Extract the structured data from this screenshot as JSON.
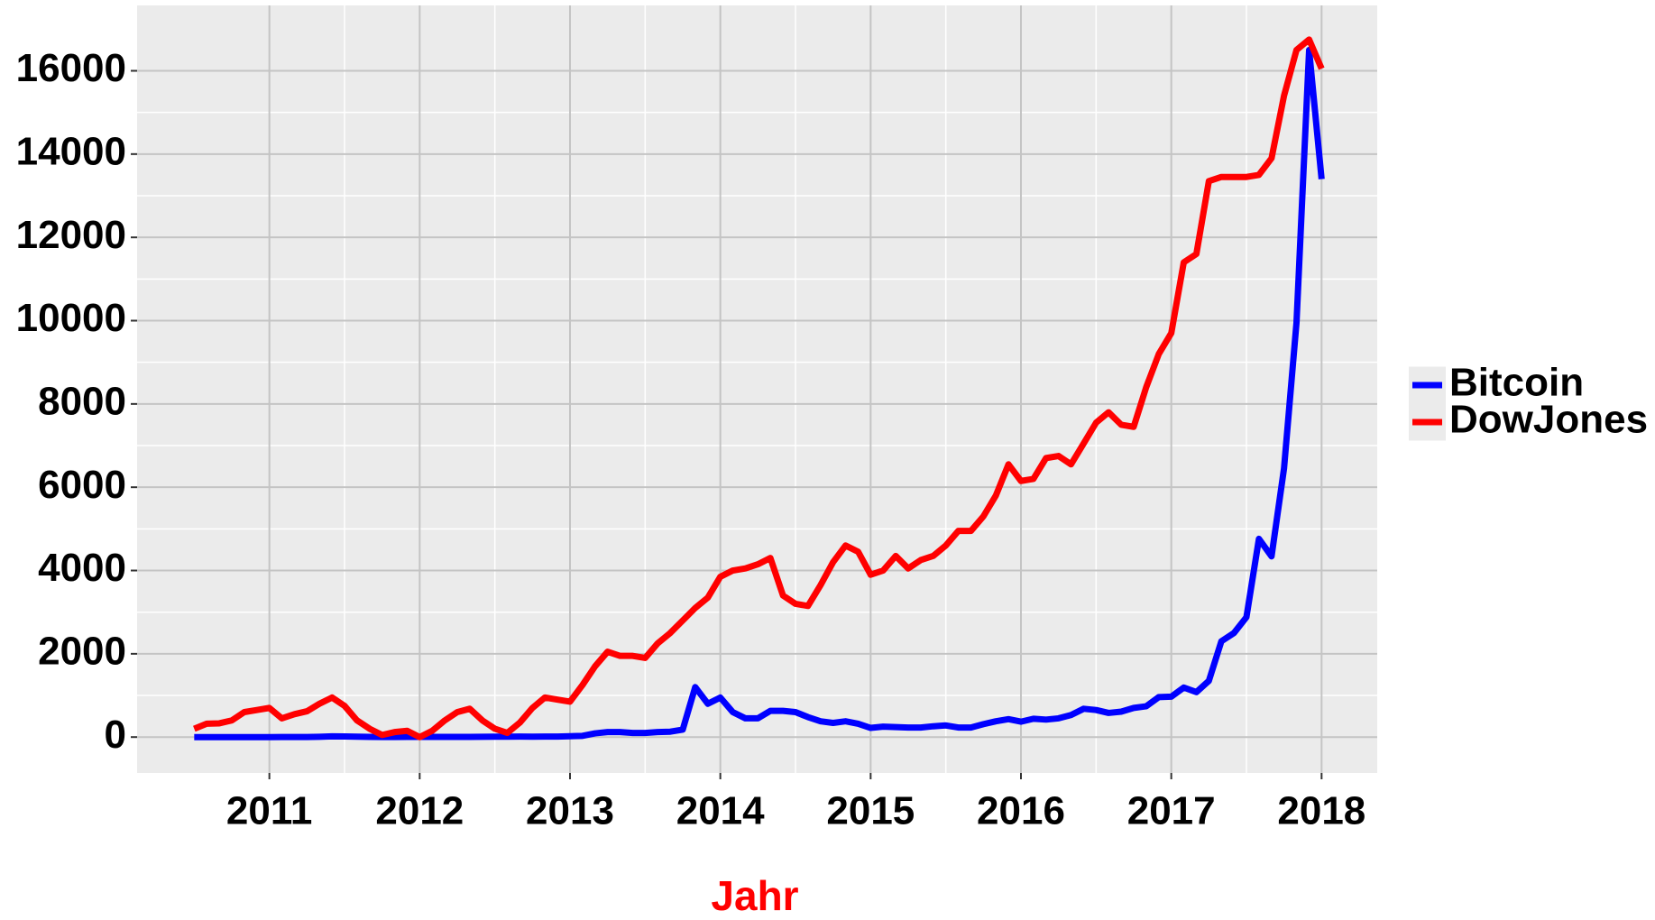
{
  "chart_data": {
    "type": "line",
    "x_label": "Jahr",
    "x": [
      2010.5,
      2010.583,
      2010.667,
      2010.75,
      2010.833,
      2010.917,
      2011,
      2011.083,
      2011.167,
      2011.25,
      2011.333,
      2011.417,
      2011.5,
      2011.583,
      2011.667,
      2011.75,
      2011.833,
      2011.917,
      2012,
      2012.083,
      2012.167,
      2012.25,
      2012.333,
      2012.417,
      2012.5,
      2012.583,
      2012.667,
      2012.75,
      2012.833,
      2012.917,
      2013,
      2013.083,
      2013.167,
      2013.25,
      2013.333,
      2013.417,
      2013.5,
      2013.583,
      2013.667,
      2013.75,
      2013.833,
      2013.917,
      2014,
      2014.083,
      2014.167,
      2014.25,
      2014.333,
      2014.417,
      2014.5,
      2014.583,
      2014.667,
      2014.75,
      2014.833,
      2014.917,
      2015,
      2015.083,
      2015.167,
      2015.25,
      2015.333,
      2015.417,
      2015.5,
      2015.583,
      2015.667,
      2015.75,
      2015.833,
      2015.917,
      2016,
      2016.083,
      2016.167,
      2016.25,
      2016.333,
      2016.417,
      2016.5,
      2016.583,
      2016.667,
      2016.75,
      2016.833,
      2016.917,
      2017,
      2017.083,
      2017.167,
      2017.25,
      2017.333,
      2017.417,
      2017.5,
      2017.583,
      2017.667,
      2017.75,
      2017.833,
      2017.917,
      2018
    ],
    "series": [
      {
        "name": "Bitcoin",
        "color": "#0000ff",
        "values": [
          0,
          0,
          0,
          0,
          0,
          0,
          0,
          1,
          1,
          1,
          8,
          17,
          14,
          9,
          5,
          3,
          3,
          4,
          5,
          5,
          5,
          5,
          5,
          7,
          9,
          10,
          12,
          11,
          12,
          13,
          20,
          30,
          90,
          120,
          120,
          100,
          100,
          120,
          130,
          180,
          1200,
          800,
          950,
          600,
          450,
          450,
          630,
          630,
          600,
          480,
          380,
          340,
          380,
          320,
          220,
          250,
          240,
          230,
          230,
          260,
          280,
          230,
          230,
          310,
          380,
          430,
          370,
          440,
          420,
          450,
          530,
          680,
          650,
          580,
          610,
          700,
          740,
          960,
          970,
          1190,
          1080,
          1350,
          2300,
          2500,
          2880,
          4760,
          4340,
          6450,
          9950,
          16500,
          13400
        ]
      },
      {
        "name": "DowJones",
        "color": "#ff0000",
        "values": [
          200,
          320,
          330,
          400,
          600,
          650,
          700,
          450,
          550,
          620,
          800,
          950,
          750,
          400,
          200,
          50,
          120,
          150,
          0,
          150,
          400,
          600,
          680,
          400,
          200,
          100,
          350,
          700,
          950,
          900,
          850,
          1250,
          1700,
          2050,
          1950,
          1950,
          1900,
          2250,
          2500,
          2800,
          3100,
          3350,
          3850,
          4000,
          4050,
          4150,
          4300,
          3400,
          3200,
          3150,
          3650,
          4200,
          4600,
          4450,
          3900,
          4000,
          4350,
          4050,
          4250,
          4350,
          4600,
          4950,
          4950,
          5300,
          5800,
          6550,
          6150,
          6200,
          6700,
          6750,
          6550,
          7050,
          7550,
          7800,
          7500,
          7450,
          8400,
          9200,
          9700,
          11400,
          11600,
          13350,
          13450,
          13450,
          13450,
          13500,
          13900,
          15400,
          16500,
          16750,
          16050
        ]
      }
    ],
    "xlim": [
      2010.12,
      2018.37
    ],
    "xticks": [
      2011,
      2012,
      2013,
      2014,
      2015,
      2016,
      2017,
      2018
    ],
    "ylim": [
      -862,
      17570
    ],
    "yticks": [
      0,
      2000,
      4000,
      6000,
      8000,
      10000,
      12000,
      14000,
      16000
    ],
    "grid": true,
    "legend": "right"
  }
}
